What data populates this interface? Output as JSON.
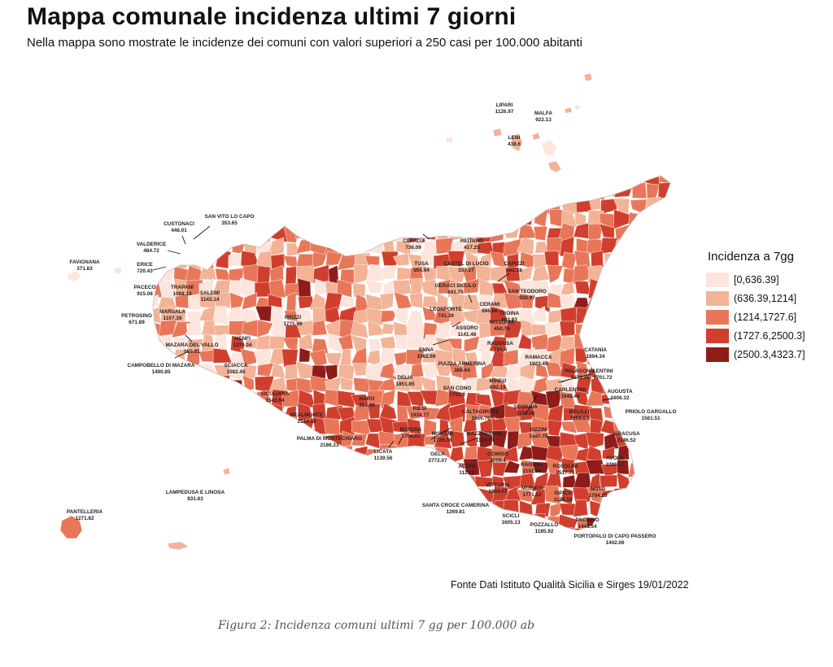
{
  "header": {
    "title": "Mappa comunale incidenza ultimi 7 giorni",
    "subtitle": "Nella mappa sono mostrate le incidenze dei comuni con valori superiori a 250 casi per 100.000 abitanti"
  },
  "legend": {
    "title": "Incidenza a 7gg",
    "classes": [
      {
        "label": "[0,636.39]",
        "color": "#fbe5dc"
      },
      {
        "label": "(636.39,1214]",
        "color": "#f2b396"
      },
      {
        "label": "(1214,1727.6]",
        "color": "#e8775a"
      },
      {
        "label": "(1727.6,2500.3]",
        "color": "#d03f2e"
      },
      {
        "label": "(2500.3,4323.7]",
        "color": "#8e1d1a"
      }
    ]
  },
  "municipalities": [
    {
      "name": "LIPARI",
      "value": "1126.97",
      "cls": 1
    },
    {
      "name": "MALFA",
      "value": "922.13",
      "cls": 1
    },
    {
      "name": "LENI",
      "value": "438.6",
      "cls": 0
    },
    {
      "name": "SAN VITO LO CAPO",
      "value": "353.65",
      "cls": 0
    },
    {
      "name": "CUSTONACI",
      "value": "446.01",
      "cls": 0
    },
    {
      "name": "VALDERICE",
      "value": "484.72",
      "cls": 0
    },
    {
      "name": "FAVIGNANA",
      "value": "371.83",
      "cls": 0
    },
    {
      "name": "ERICE",
      "value": "720.43",
      "cls": 1
    },
    {
      "name": "PACECO",
      "value": "915.08",
      "cls": 1
    },
    {
      "name": "TRAPANI",
      "value": "1088.14",
      "cls": 1
    },
    {
      "name": "SALEMI",
      "value": "1143.14",
      "cls": 1
    },
    {
      "name": "MARSALA",
      "value": "1107.39",
      "cls": 1
    },
    {
      "name": "PETROSINO",
      "value": "671.89",
      "cls": 1
    },
    {
      "name": "MAZARA DEL VALLO",
      "value": "955.51",
      "cls": 1
    },
    {
      "name": "CAMPOBELLO DI MAZARA",
      "value": "1490.85",
      "cls": 2
    },
    {
      "name": "MENFI",
      "value": "1274.04",
      "cls": 2
    },
    {
      "name": "SCIACCA",
      "value": "1082.45",
      "cls": 1
    },
    {
      "name": "PRIZZI",
      "value": "1775.96",
      "cls": 3
    },
    {
      "name": "SICULIANA",
      "value": "1543.94",
      "cls": 2
    },
    {
      "name": "REALMONTE",
      "value": "2144.16",
      "cls": 3
    },
    {
      "name": "PALMA DI MONTECHIARO",
      "value": "2186.23",
      "cls": 3
    },
    {
      "name": "LICATA",
      "value": "1139.56",
      "cls": 1
    },
    {
      "name": "CEFALÙ",
      "value": "736.09",
      "cls": 1
    },
    {
      "name": "REITANO",
      "value": "417.25",
      "cls": 0
    },
    {
      "name": "TUSA",
      "value": "554.94",
      "cls": 0
    },
    {
      "name": "CASTEL DI LUCIO",
      "value": "337.27",
      "cls": 0
    },
    {
      "name": "CAPIZZI",
      "value": "562.18",
      "cls": 0
    },
    {
      "name": "GERACI SICULO",
      "value": "841.75",
      "cls": 1
    },
    {
      "name": "CERAMI",
      "value": "696.66",
      "cls": 1
    },
    {
      "name": "SAN TEODORO",
      "value": "938.97",
      "cls": 1
    },
    {
      "name": "TROINA",
      "value": "683.83",
      "cls": 1
    },
    {
      "name": "NISSORIA",
      "value": "450.76",
      "cls": 0
    },
    {
      "name": "LEONFORTE",
      "value": "741.39",
      "cls": 1
    },
    {
      "name": "ASSORO",
      "value": "1141.46",
      "cls": 1
    },
    {
      "name": "ENNA",
      "value": "1062.69",
      "cls": 1
    },
    {
      "name": "RADDUSA",
      "value": "721.4",
      "cls": 1
    },
    {
      "name": "RAMACCA",
      "value": "1923.45",
      "cls": 3
    },
    {
      "name": "CATANIA",
      "value": "1894.34",
      "cls": 3
    },
    {
      "name": "PIAZZA ARMERINA",
      "value": "386.64",
      "cls": 0
    },
    {
      "name": "DELIA",
      "value": "1851.85",
      "cls": 3
    },
    {
      "name": "SAN CONO",
      "value": "1702.3",
      "cls": 2
    },
    {
      "name": "MINEO",
      "value": "692.19",
      "cls": 1
    },
    {
      "name": "PALAGONIA",
      "value": "1973.26",
      "cls": 3
    },
    {
      "name": "LENTINI",
      "value": "1701.72",
      "cls": 2
    },
    {
      "name": "CARLENTINI",
      "value": "1648.46",
      "cls": 2
    },
    {
      "name": "AUGUSTA",
      "value": "1606.32",
      "cls": 2
    },
    {
      "name": "NARO",
      "value": "964.36",
      "cls": 1
    },
    {
      "name": "RIESI",
      "value": "1934.77",
      "cls": 3
    },
    {
      "name": "CALTAGIRONE",
      "value": "1666.76",
      "cls": 2
    },
    {
      "name": "SCORDIA",
      "value": "1158.06",
      "cls": 1
    },
    {
      "name": "MELILLI",
      "value": "1669.67",
      "cls": 2
    },
    {
      "name": "PRIOLO GARGALLO",
      "value": "1561.51",
      "cls": 2
    },
    {
      "name": "BUTERA",
      "value": "1704.01",
      "cls": 2
    },
    {
      "name": "NISCEMI",
      "value": "1726.36",
      "cls": 2
    },
    {
      "name": "MAZZARRONE",
      "value": "1124.74",
      "cls": 1
    },
    {
      "name": "VIZZINI",
      "value": "1497.78",
      "cls": 2
    },
    {
      "name": "SIRACUSA",
      "value": "2146.52",
      "cls": 3
    },
    {
      "name": "GELA",
      "value": "2772.07",
      "cls": 4
    },
    {
      "name": "ACATE",
      "value": "1123.8",
      "cls": 1
    },
    {
      "name": "COMISO",
      "value": "2069.4",
      "cls": 3
    },
    {
      "name": "RAGUSA",
      "value": "2102.94",
      "cls": 3
    },
    {
      "name": "ROSOLINI",
      "value": "2517.71",
      "cls": 4
    },
    {
      "name": "AVOLA",
      "value": "2286.17",
      "cls": 3
    },
    {
      "name": "VITTORIA",
      "value": "1984.07",
      "cls": 3
    },
    {
      "name": "MODICA",
      "value": "1771.13",
      "cls": 3
    },
    {
      "name": "ISPICA",
      "value": "1124.18",
      "cls": 1
    },
    {
      "name": "NOTO",
      "value": "1794.29",
      "cls": 3
    },
    {
      "name": "SANTA CROCE CAMERINA",
      "value": "1269.81",
      "cls": 2
    },
    {
      "name": "SCICLI",
      "value": "1605.13",
      "cls": 2
    },
    {
      "name": "POZZALLO",
      "value": "1185.92",
      "cls": 1
    },
    {
      "name": "PACHINO",
      "value": "1445.54",
      "cls": 2
    },
    {
      "name": "PORTOPALO DI CAPO PASSERO",
      "value": "1442.06",
      "cls": 2
    },
    {
      "name": "LAMPEDUSA E LINOSA",
      "value": "831.63",
      "cls": 1
    },
    {
      "name": "PANTELLERIA",
      "value": "1271.82",
      "cls": 2
    }
  ],
  "source_note": "Fonte Dati Istituto Qualità Sicilia e Sirges 19/01/2022",
  "caption": "Figura 2: Incidenza comuni ultimi 7 gg per 100.000 ab"
}
